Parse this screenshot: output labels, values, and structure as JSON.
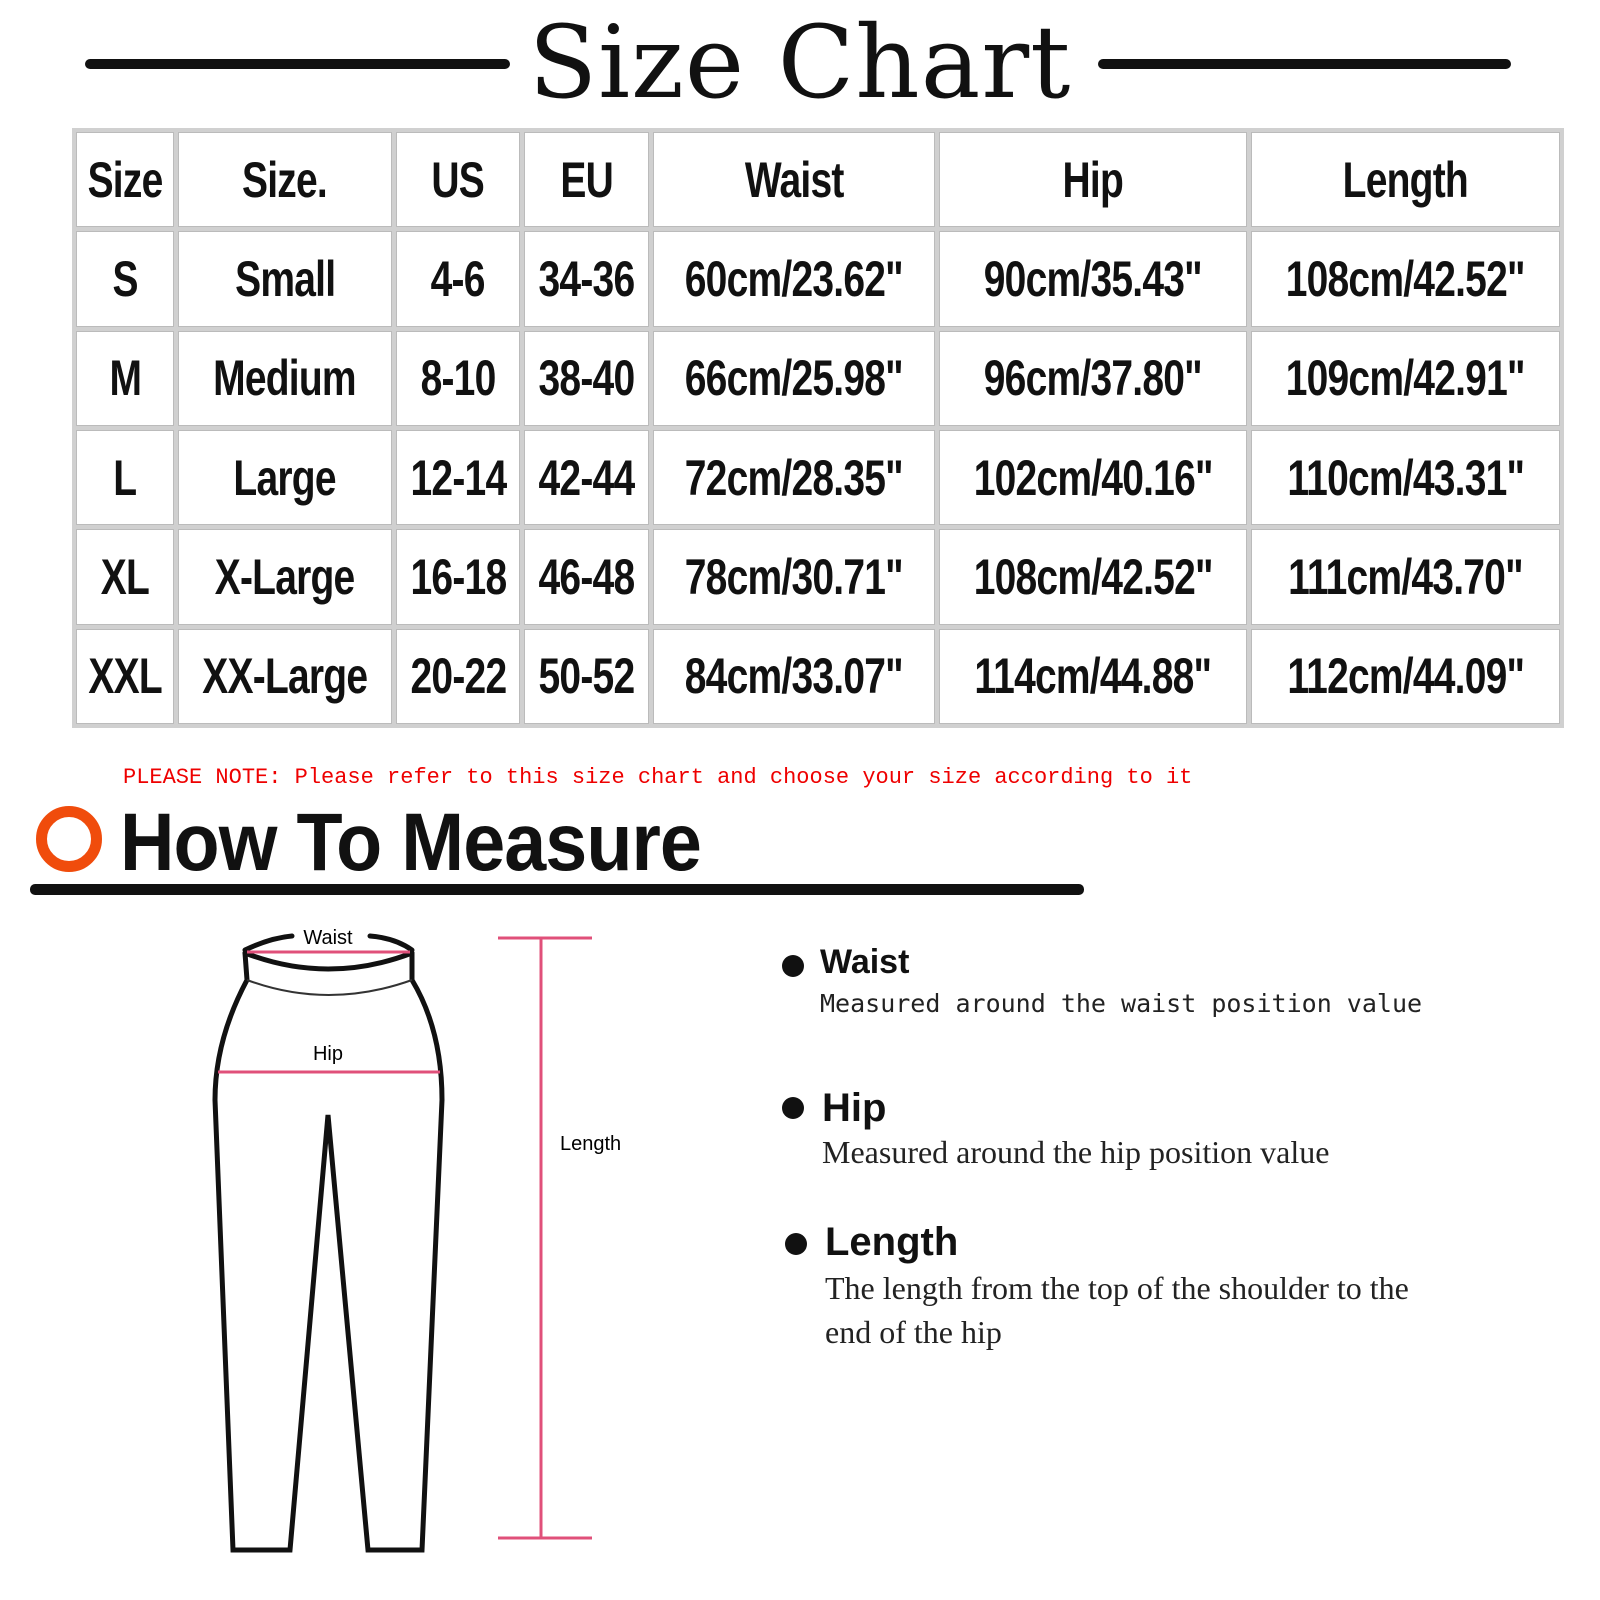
{
  "title": "Size Chart",
  "table": {
    "headers": [
      "Size",
      "Size.",
      "US",
      "EU",
      "Waist",
      "Hip",
      "Length"
    ],
    "rows": [
      [
        "S",
        "Small",
        "4-6",
        "34-36",
        "60cm/23.62\"",
        "90cm/35.43\"",
        "108cm/42.52\""
      ],
      [
        "M",
        "Medium",
        "8-10",
        "38-40",
        "66cm/25.98\"",
        "96cm/37.80\"",
        "109cm/42.91\""
      ],
      [
        "L",
        "Large",
        "12-14",
        "42-44",
        "72cm/28.35\"",
        "102cm/40.16\"",
        "110cm/43.31\""
      ],
      [
        "XL",
        "X-Large",
        "16-18",
        "46-48",
        "78cm/30.71\"",
        "108cm/42.52\"",
        "111cm/43.70\""
      ],
      [
        "XXL",
        "XX-Large",
        "20-22",
        "50-52",
        "84cm/33.07\"",
        "114cm/44.88\"",
        "112cm/44.09\""
      ]
    ]
  },
  "note": "PLEASE NOTE: Please refer to this size chart and choose your size according to it",
  "how_to": {
    "heading": "How To Measure",
    "accent_color": "#f04c0c",
    "measure_line_color": "#e0507a",
    "figure_labels": {
      "waist": "Waist",
      "hip": "Hip",
      "length": "Length"
    },
    "items": [
      {
        "name": "Waist",
        "desc": "Measured around the waist position value"
      },
      {
        "name": "Hip",
        "desc": "Measured around the  hip position value"
      },
      {
        "name": "Length",
        "desc": "The length from the top of the shoulder to the end of the hip"
      }
    ]
  }
}
